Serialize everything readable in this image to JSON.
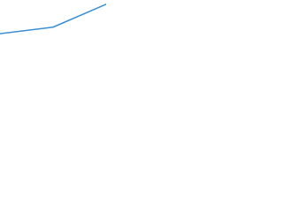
{
  "chart_data": {
    "type": "line",
    "categories": [
      null,
      null,
      null
    ],
    "values": [
      2,
      10,
      38
    ],
    "color": "#3b8fd4",
    "ylim": [
      0,
      40
    ]
  }
}
